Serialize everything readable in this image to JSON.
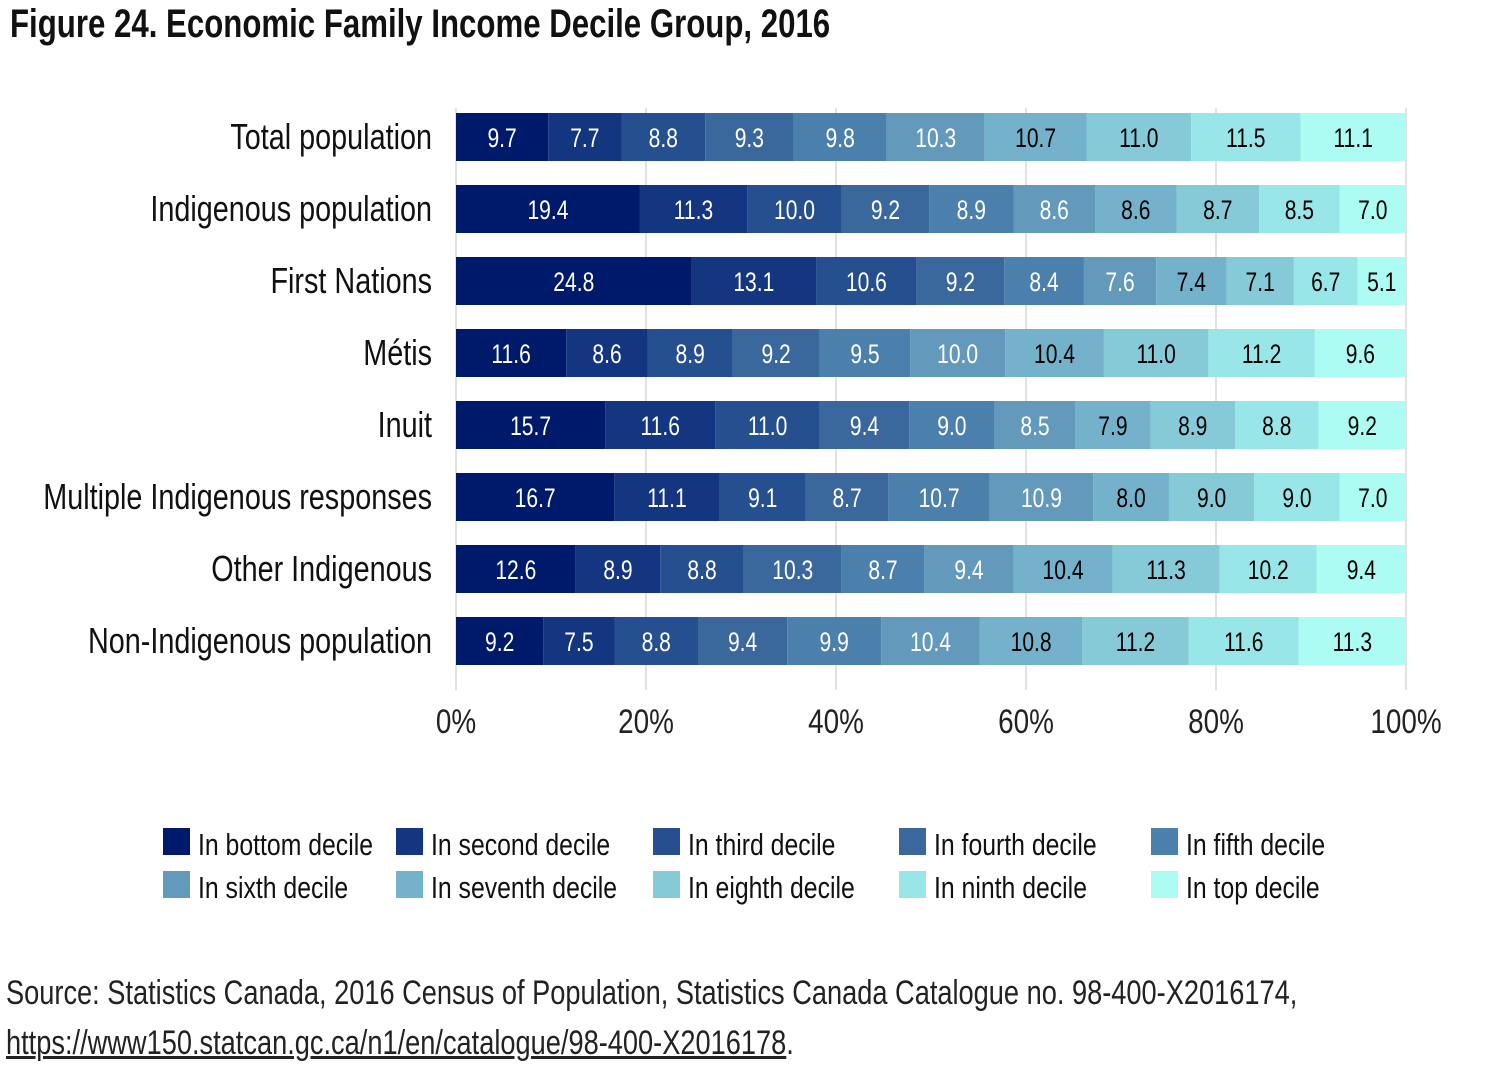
{
  "chart_data": {
    "type": "bar",
    "orientation": "horizontal",
    "stacked": true,
    "title": "Figure 24. Economic Family Income Decile Group, 2016",
    "categories": [
      "Total population",
      "Indigenous population",
      "First Nations",
      "Métis",
      "Inuit",
      "Multiple Indigenous responses",
      "Other Indigenous",
      "Non-Indigenous population"
    ],
    "series": [
      {
        "name": "In bottom decile",
        "color": "#001a6b",
        "values": [
          9.7,
          19.4,
          24.8,
          11.6,
          15.7,
          16.7,
          12.6,
          9.2
        ]
      },
      {
        "name": "In second decile",
        "color": "#14357f",
        "values": [
          7.7,
          11.3,
          13.1,
          8.6,
          11.6,
          11.1,
          8.9,
          7.5
        ]
      },
      {
        "name": "In third decile",
        "color": "#264f8f",
        "values": [
          8.8,
          10.0,
          10.6,
          8.9,
          11.0,
          9.1,
          8.8,
          8.8
        ]
      },
      {
        "name": "In fourth decile",
        "color": "#3a679c",
        "values": [
          9.3,
          9.2,
          9.2,
          9.2,
          9.4,
          8.7,
          10.3,
          9.4
        ]
      },
      {
        "name": "In fifth decile",
        "color": "#4b80ad",
        "values": [
          9.8,
          8.9,
          8.4,
          9.5,
          9.0,
          10.7,
          8.7,
          9.9
        ]
      },
      {
        "name": "In sixth decile",
        "color": "#6399bb",
        "values": [
          10.3,
          8.6,
          7.6,
          10.0,
          8.5,
          10.9,
          9.4,
          10.4
        ]
      },
      {
        "name": "In seventh decile",
        "color": "#74b2cb",
        "values": [
          10.7,
          8.6,
          7.4,
          10.4,
          7.9,
          8.0,
          10.4,
          10.8
        ]
      },
      {
        "name": "In eighth decile",
        "color": "#86cad8",
        "values": [
          11.0,
          8.7,
          7.1,
          11.0,
          8.9,
          9.0,
          11.3,
          11.2
        ]
      },
      {
        "name": "In ninth decile",
        "color": "#99e6e8",
        "values": [
          11.5,
          8.5,
          6.7,
          11.2,
          8.8,
          9.0,
          10.2,
          11.6
        ]
      },
      {
        "name": "In top decile",
        "color": "#adfcf3",
        "values": [
          11.1,
          7.0,
          5.1,
          9.6,
          9.2,
          7.0,
          9.4,
          11.3
        ]
      }
    ],
    "x_ticks": [
      "0%",
      "20%",
      "40%",
      "60%",
      "80%",
      "100%"
    ],
    "xlim": [
      0,
      100
    ],
    "grid": true,
    "legend_position": "bottom"
  },
  "source": {
    "text": "Source: Statistics Canada, 2016 Census of Population, Statistics Canada Catalogue no. 98-400-X2016174,",
    "link": "https://www150.statcan.gc.ca/n1/en/catalogue/98-400-X2016178",
    "trailing": "."
  }
}
